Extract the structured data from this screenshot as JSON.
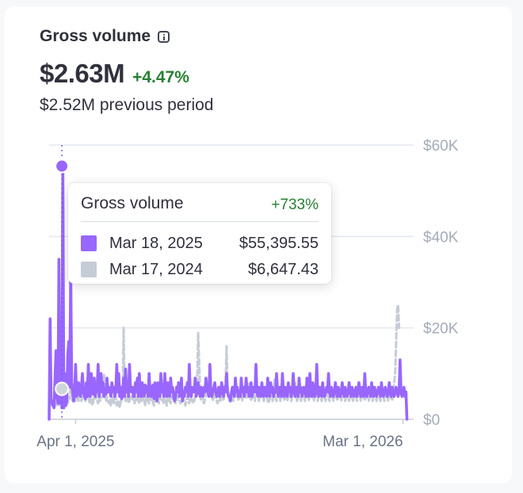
{
  "widget": {
    "title": "Gross volume",
    "icon": "info-icon",
    "value": "$2.63M",
    "delta": "+4.47%",
    "previous": "$2.52M previous period"
  },
  "tooltip": {
    "title": "Gross volume",
    "delta": "+733%",
    "rows": [
      {
        "date": "Mar 18, 2025",
        "amount": "$55,395.55",
        "color": "#9966ff"
      },
      {
        "date": "Mar 17, 2024",
        "amount": "$6,647.43",
        "color": "#c6ccd6"
      }
    ]
  },
  "colors": {
    "current": "#9966ff",
    "previous": "#c6ccd6",
    "positive": "#288033"
  },
  "chart_data": {
    "type": "line",
    "x_start": "2025-03-05",
    "x_end": "2026-03-07",
    "x_ticks": [
      {
        "date": "2025-04-01",
        "label": "Apr 1, 2025"
      },
      {
        "date": "2026-03-01",
        "label": "Mar 1, 2026"
      }
    ],
    "y_ticks": [
      {
        "value": 0,
        "label": "$0"
      },
      {
        "value": 20000,
        "label": "$20K"
      },
      {
        "value": 40000,
        "label": "$40K"
      },
      {
        "value": 60000,
        "label": "$60K"
      }
    ],
    "ylim": [
      0,
      60000
    ],
    "grid": true,
    "highlight": {
      "date": "2025-03-18",
      "current": 55395.55,
      "previous": 6647.43
    },
    "series": [
      {
        "style": "solid",
        "color": "#9966ff",
        "values": [
          0,
          22000,
          4500,
          3500,
          3000,
          2500,
          9000,
          15000,
          5000,
          3500,
          35000,
          3500,
          17000,
          2500,
          55395.55,
          2500,
          10000,
          3000,
          4000,
          14000,
          17000,
          7000,
          33000,
          8000,
          6000,
          4000,
          6000,
          12000,
          5000,
          6000,
          8000,
          5500,
          5000,
          7500,
          10000,
          6000,
          5000,
          4500,
          8000,
          5000,
          12000,
          6000,
          5000,
          10000,
          6000,
          5500,
          9000,
          5000,
          6000,
          7000,
          12000,
          5000,
          7000,
          10000,
          6000,
          8000,
          5000,
          6000,
          5500,
          9000,
          6000,
          7000,
          6000,
          5000,
          8000,
          6000,
          7000,
          5000,
          6000,
          12000,
          6000,
          10000,
          5000,
          7000,
          4500,
          6000,
          9000,
          5000,
          11000,
          6000,
          7000,
          5000,
          12000,
          6500,
          6000,
          7000,
          5000,
          5000,
          8000,
          6000,
          9000,
          5000,
          10000,
          6000,
          5000,
          8000,
          6000,
          5000,
          7500,
          7000,
          6000,
          5000,
          10000,
          6000,
          5000,
          7000,
          7500,
          4500,
          8000,
          7000,
          4000,
          8000,
          6000,
          5000,
          10000,
          6000,
          7000,
          5000,
          10000,
          6000,
          5000,
          8000,
          6000,
          5000,
          9000,
          6000,
          7000,
          5000,
          4000,
          5000,
          7000,
          6000,
          8000,
          5000,
          6000,
          9000,
          4000,
          6000,
          5000,
          7000,
          6000,
          8000,
          5000,
          12000,
          6000,
          5000,
          7000,
          6000,
          6000,
          9000,
          5000,
          6000,
          8000,
          6000,
          5000,
          7000,
          6000,
          5000,
          7000,
          6000,
          9000,
          6500,
          6000,
          5000,
          12000,
          6000,
          5000,
          6000,
          7000,
          8000,
          6000,
          5000,
          6000,
          7000,
          5000,
          6000,
          8000,
          6000,
          5000,
          7000,
          6000,
          10000,
          6000,
          5000,
          5000,
          4000,
          6000,
          7000,
          6000,
          5000,
          9000,
          6000,
          7000,
          5000,
          6000,
          5000,
          9000,
          6000,
          7000,
          5000,
          6000,
          9000,
          6000,
          7000,
          5000,
          6000,
          8000,
          5000,
          7000,
          6000,
          6000,
          12000,
          6000,
          5000,
          7000,
          6000,
          5000,
          8000,
          6000,
          5000,
          7000,
          6000,
          5000,
          9000,
          6000,
          5000,
          8000,
          6000,
          7000,
          5000,
          6000,
          6000,
          10000,
          6000,
          5000,
          7000,
          6000,
          5000,
          10000,
          6000,
          5000,
          7000,
          6000,
          5000,
          8000,
          6000,
          7000,
          5000,
          6000,
          10000,
          6000,
          5000,
          7000,
          6000,
          5000,
          9000,
          6000,
          7000,
          5000,
          6000,
          7000,
          6000,
          5000,
          9000,
          6000,
          5000,
          10000,
          6000,
          5000,
          8000,
          6000,
          5000,
          6000,
          12000,
          6000,
          5000,
          7000,
          6000,
          5000,
          8000,
          6000,
          5000,
          6000,
          7000,
          6000,
          10000,
          6000,
          5000,
          7000,
          6000,
          5000,
          6000,
          8000,
          6000,
          5000,
          7000,
          6000,
          5000,
          6000,
          8000,
          6000,
          5000,
          7000,
          6000,
          5000,
          6000,
          8000,
          6000,
          5000,
          7000,
          6000,
          5000,
          6000,
          7000,
          5000,
          6000,
          8000,
          6000,
          5000,
          7000,
          6000,
          5000,
          10000,
          6000,
          5000,
          6000,
          7000,
          6000,
          5000,
          8000,
          6000,
          5000,
          7000,
          6000,
          5000,
          6000,
          7000,
          6000,
          5000,
          8000,
          6000,
          5000,
          6000,
          7000,
          6000,
          5000,
          6000,
          8000,
          6000,
          5000,
          7000,
          6000,
          5000,
          6000,
          7000,
          6000,
          5000,
          6000,
          13000,
          6000,
          5000,
          6000,
          7000,
          5000,
          6000,
          0
        ]
      },
      {
        "style": "dashed",
        "color": "#c6ccd6",
        "values": [
          5000,
          4000,
          3500,
          3000,
          4000,
          3500,
          6647.43,
          3000,
          3500,
          4000,
          3000,
          6000,
          5000,
          7000,
          4000,
          3500,
          5000,
          6000,
          4000,
          3500,
          5000,
          4500,
          7000,
          5000,
          4000,
          6000,
          5000,
          4000,
          5000,
          6000,
          4000,
          5000,
          5500,
          4000,
          5000,
          8000,
          5000,
          4000,
          5000,
          9000,
          5000,
          3500,
          5000,
          4000,
          3000,
          4000,
          6000,
          4500,
          5000,
          4000,
          3500,
          5000,
          4000,
          4500,
          5000,
          6000,
          10000,
          5000,
          4000,
          5000,
          4000,
          3500,
          4500,
          3000,
          4000,
          5000,
          3500,
          4000,
          5000,
          3000,
          4000,
          3500,
          2500,
          4000,
          4000,
          5000,
          20000,
          6000,
          4000,
          4500,
          5000,
          3500,
          4000,
          5000,
          4500,
          5000,
          4000,
          3500,
          4000,
          5000,
          4500,
          4000,
          3500,
          5000,
          4000,
          4500,
          5000,
          4000,
          3000,
          4500,
          5000,
          4000,
          3500,
          5000,
          4000,
          6000,
          3500,
          3000,
          4000,
          5000,
          4500,
          4000,
          3500,
          5000,
          4000,
          4500,
          4000,
          3500,
          5000,
          4000,
          3000,
          4500,
          5000,
          4000,
          3500,
          5000,
          4500,
          5000,
          4000,
          3500,
          4000,
          5000,
          4500,
          4000,
          3500,
          4000,
          5000,
          4500,
          4000,
          3000,
          4000,
          5000,
          4000,
          3500,
          4500,
          5000,
          4000,
          3500,
          4000,
          5000,
          6000,
          8000,
          19000,
          13000,
          6000,
          4000,
          5000,
          4000,
          3500,
          4500,
          5000,
          8000,
          6000,
          7000,
          9000,
          6000,
          5000,
          4000,
          5000,
          6000,
          5000,
          4000,
          3500,
          4500,
          5000,
          4000,
          6000,
          5000,
          4000,
          7000,
          8000,
          16000,
          7000,
          5000,
          4000,
          5000,
          6000,
          5000,
          4000,
          6000,
          7000,
          5000,
          6000,
          4000,
          5000,
          6000,
          5000,
          4000,
          7000,
          6000,
          5000,
          4500,
          5000,
          6000,
          8000,
          5000,
          4000,
          5000,
          6000,
          5000,
          4000,
          7000,
          6000,
          5000,
          4000,
          5000,
          6000,
          7000,
          5000,
          4000,
          5000,
          6000,
          5000,
          4000,
          3500,
          4500,
          5000,
          6000,
          4000,
          5000,
          9000,
          5000,
          4000,
          5000,
          6000,
          5000,
          4000,
          5000,
          6000,
          5000,
          4000,
          5000,
          6000,
          4000,
          5000,
          6000,
          5000,
          4000,
          5000,
          6000,
          7000,
          8000,
          5000,
          4000,
          5000,
          6000,
          5000,
          4000,
          5000,
          6000,
          5000,
          4000,
          5000,
          6000,
          5000,
          4000,
          5000,
          6000,
          7000,
          5000,
          4000,
          5000,
          6000,
          5000,
          4000,
          5000,
          6000,
          5000,
          4000,
          5000,
          6000,
          5000,
          4000,
          5000,
          6000,
          5000,
          4000,
          5000,
          6000,
          5000,
          4000,
          5000,
          6000,
          5000,
          4000,
          5000,
          6000,
          5000,
          4000,
          5000,
          6000,
          5000,
          4000,
          5000,
          6000,
          5000,
          4000,
          5000,
          6000,
          5000,
          4000,
          5000,
          6000,
          5000,
          4000,
          5000,
          6000,
          5000,
          4000,
          5000,
          6000,
          5000,
          4000,
          5000,
          6000,
          5000,
          4000,
          5000,
          6000,
          5000,
          4000,
          5000,
          6000,
          5000,
          4000,
          5000,
          6000,
          5000,
          4000,
          5000,
          6000,
          5000,
          4000,
          5000,
          6000,
          5000,
          4000,
          5000,
          6000,
          5000,
          4000,
          6000,
          8000,
          10000,
          17000,
          24000,
          25000,
          20000
        ]
      }
    ]
  }
}
